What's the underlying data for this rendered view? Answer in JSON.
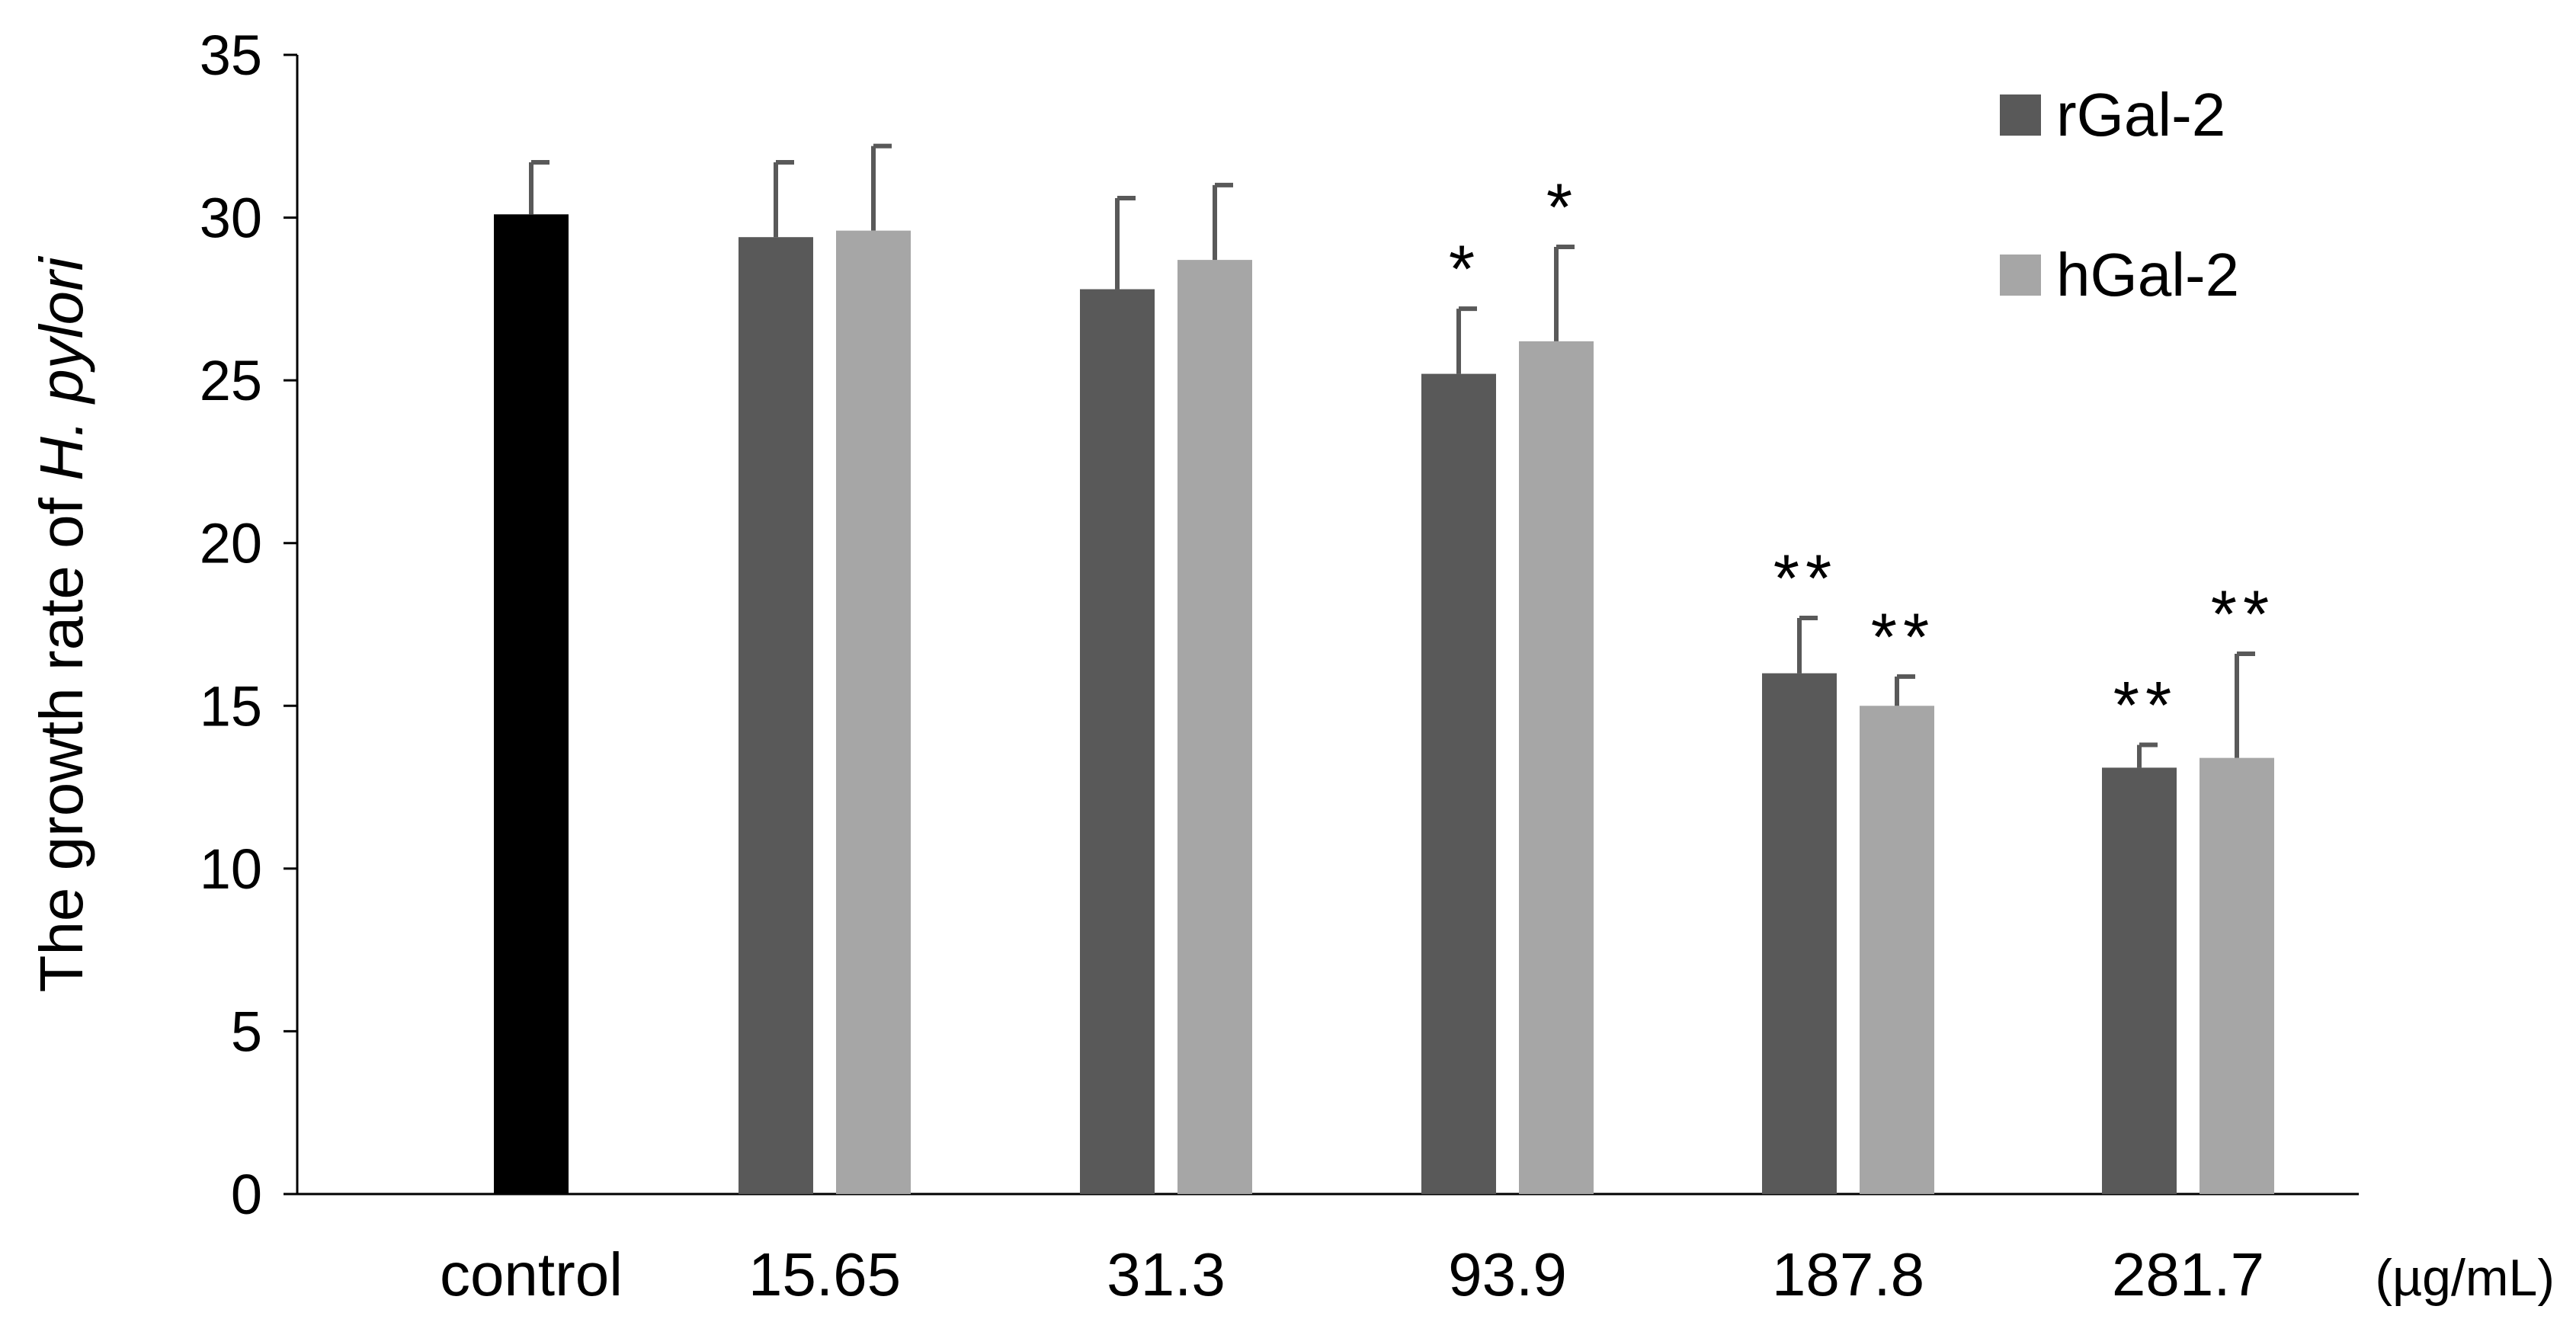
{
  "chart_data": {
    "type": "bar",
    "title": "",
    "ylabel_prefix": "The growth rate of ",
    "ylabel_italic": "H. pylori",
    "xunit": "(µg/mL)",
    "ylim": [
      0,
      35
    ],
    "yticks": [
      "0",
      "5",
      "10",
      "15",
      "20",
      "25",
      "30",
      "35"
    ],
    "grid": false,
    "legend_position": "top-right",
    "groups": [
      {
        "label": "control",
        "bars": [
          {
            "series": "control",
            "value": 30.1,
            "error": 1.6,
            "sig": ""
          }
        ]
      },
      {
        "label": "15.65",
        "bars": [
          {
            "series": "rGal-2",
            "value": 29.4,
            "error": 2.3,
            "sig": ""
          },
          {
            "series": "hGal-2",
            "value": 29.6,
            "error": 2.6,
            "sig": ""
          }
        ]
      },
      {
        "label": "31.3",
        "bars": [
          {
            "series": "rGal-2",
            "value": 27.8,
            "error": 2.8,
            "sig": ""
          },
          {
            "series": "hGal-2",
            "value": 28.7,
            "error": 2.3,
            "sig": ""
          }
        ]
      },
      {
        "label": "93.9",
        "bars": [
          {
            "series": "rGal-2",
            "value": 25.2,
            "error": 2.0,
            "sig": "*"
          },
          {
            "series": "hGal-2",
            "value": 26.2,
            "error": 2.9,
            "sig": "*"
          }
        ]
      },
      {
        "label": "187.8",
        "bars": [
          {
            "series": "rGal-2",
            "value": 16.0,
            "error": 1.7,
            "sig": "**"
          },
          {
            "series": "hGal-2",
            "value": 15.0,
            "error": 0.9,
            "sig": "**"
          }
        ]
      },
      {
        "label": "281.7",
        "bars": [
          {
            "series": "rGal-2",
            "value": 13.1,
            "error": 0.7,
            "sig": "**"
          },
          {
            "series": "hGal-2",
            "value": 13.4,
            "error": 3.2,
            "sig": "**"
          }
        ]
      }
    ],
    "series": [
      {
        "name": "rGal-2",
        "color": "#595959",
        "in_legend": true
      },
      {
        "name": "hGal-2",
        "color": "#a6a6a6",
        "in_legend": true
      },
      {
        "name": "control",
        "color": "#000000",
        "in_legend": false
      }
    ],
    "error_bar_color": "#595959",
    "axis_color": "#000000"
  }
}
